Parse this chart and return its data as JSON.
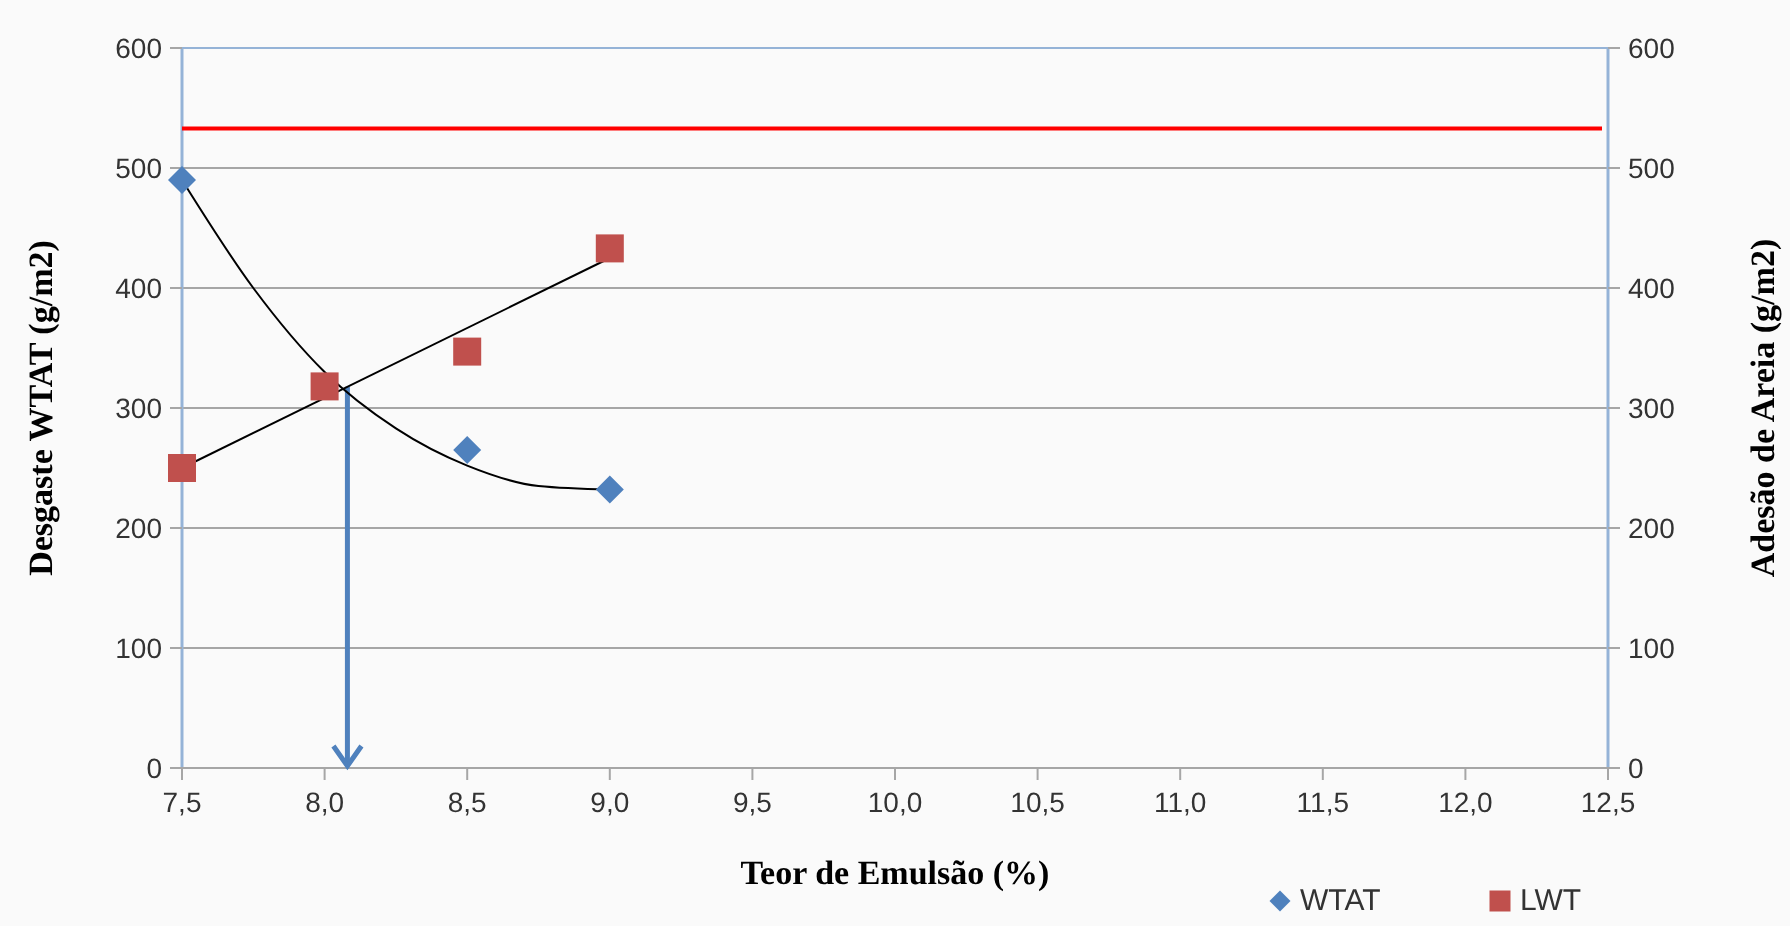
{
  "chart_data": {
    "type": "scatter",
    "xlabel": "Teor de Emulsão (%)",
    "ylabel": "Desgaste WTAT (g/m2)",
    "y2label": "Adesão de Areia (g/m2)",
    "xlim": [
      7.5,
      12.5
    ],
    "xticks": [
      {
        "value": 7.5,
        "label": "7,5"
      },
      {
        "value": 8,
        "label": "8,0"
      },
      {
        "value": 8.5,
        "label": "8,5"
      },
      {
        "value": 9,
        "label": "9,0"
      },
      {
        "value": 9.5,
        "label": "9,5"
      },
      {
        "value": 10,
        "label": "10,0"
      },
      {
        "value": 10.5,
        "label": "10,5"
      },
      {
        "value": 11,
        "label": "11,0"
      },
      {
        "value": 11.5,
        "label": "11,5"
      },
      {
        "value": 12,
        "label": "12,0"
      },
      {
        "value": 12.5,
        "label": "12,5"
      }
    ],
    "ylim": [
      0,
      600
    ],
    "yticks": [
      0,
      100,
      200,
      300,
      400,
      500,
      600
    ],
    "y2lim": [
      0,
      600
    ],
    "y2ticks": [
      0,
      100,
      200,
      300,
      400,
      500,
      600
    ],
    "grid": "y",
    "legend": "bottom",
    "x": [
      7.5,
      8,
      8.5,
      9
    ],
    "series": [
      {
        "name": "WTAT",
        "color": "#4f81bd",
        "marker": "diamond",
        "values": [
          490,
          null,
          265,
          232
        ]
      },
      {
        "name": "LWT",
        "color": "#c0504d",
        "marker": "square",
        "values": [
          250,
          318,
          347,
          433
        ]
      },
      {
        "type": "line",
        "color": "#000000",
        "x": [
          7.5,
          7.75,
          8,
          8.25,
          8.5,
          8.75,
          9
        ],
        "values": [
          490,
          400,
          330,
          283,
          252,
          235,
          232
        ]
      },
      {
        "type": "line",
        "color": "#000000",
        "x": [
          7.5,
          9
        ],
        "values": [
          250,
          425
        ]
      }
    ],
    "ref_lines": [
      {
        "axis": "y",
        "value": 533,
        "color": "#ff0000"
      },
      {
        "axis": "x",
        "value": 8.08,
        "color": "#4f81bd"
      }
    ]
  }
}
